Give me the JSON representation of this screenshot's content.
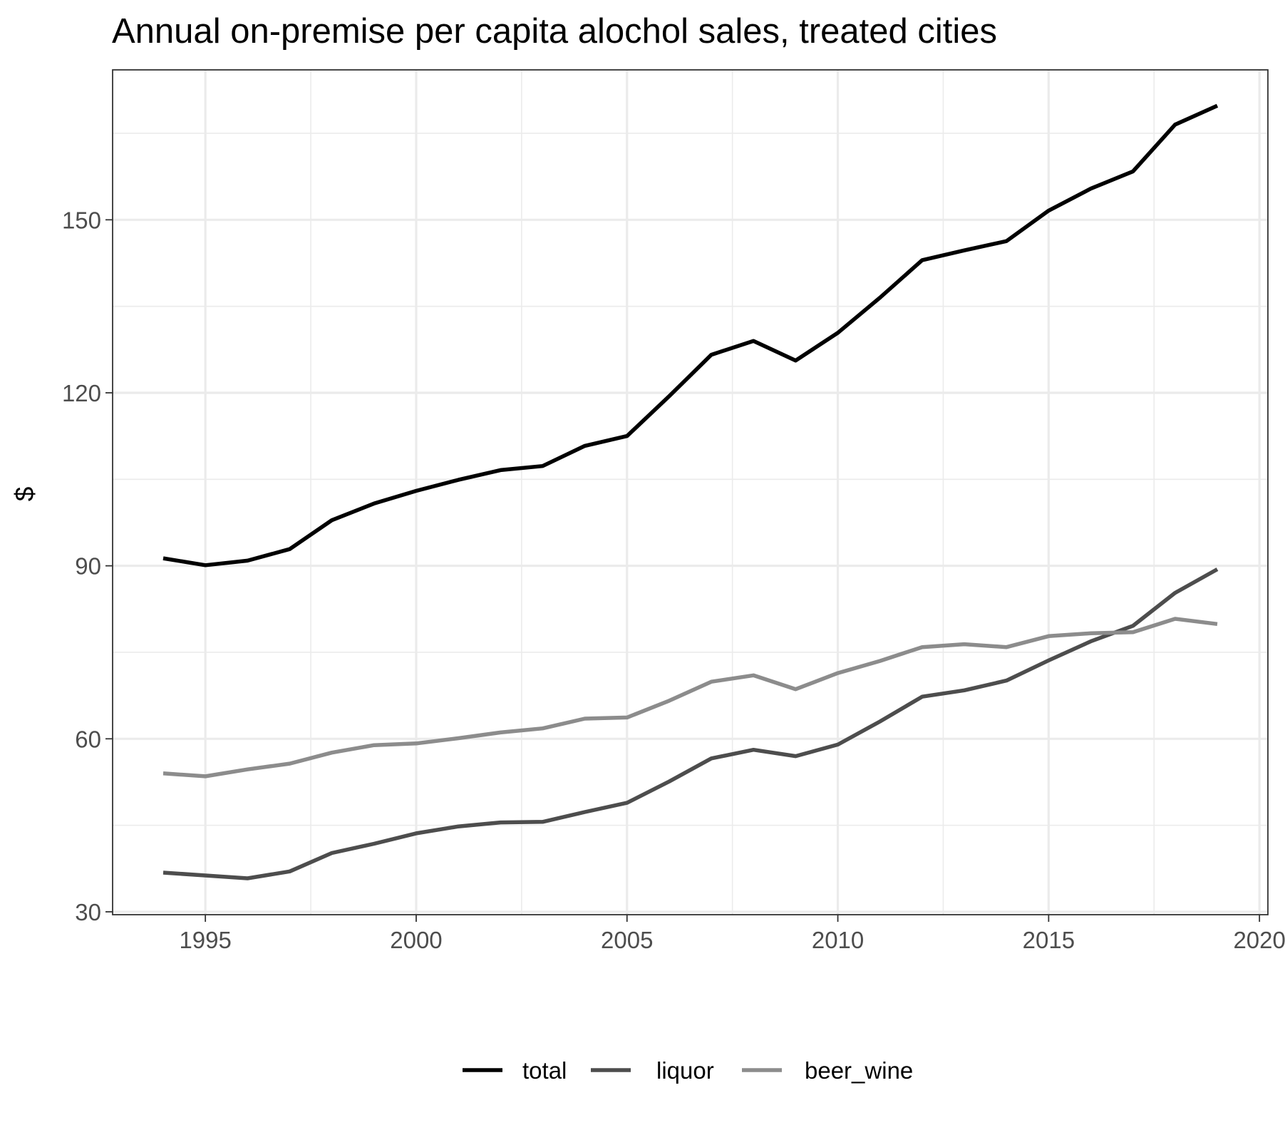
{
  "chart_data": {
    "type": "line",
    "title": "Annual on-premise per capita alochol sales, treated cities",
    "xlabel": "",
    "ylabel": "$",
    "xlim": [
      1992.8,
      2020.2
    ],
    "ylim": [
      29.5,
      176
    ],
    "x_ticks": [
      1995,
      2000,
      2005,
      2010,
      2015,
      2020
    ],
    "x_minor_ticks": [
      1997.5,
      2002.5,
      2007.5,
      2012.5,
      2017.5
    ],
    "y_ticks": [
      30,
      60,
      90,
      120,
      150
    ],
    "y_minor_ticks": [
      45,
      75,
      105,
      135,
      165
    ],
    "grid": true,
    "legend_position": "bottom",
    "x": [
      1994,
      1995,
      1996,
      1997,
      1998,
      1999,
      2000,
      2001,
      2002,
      2003,
      2004,
      2005,
      2006,
      2007,
      2008,
      2009,
      2010,
      2011,
      2012,
      2013,
      2014,
      2015,
      2016,
      2017,
      2018,
      2019
    ],
    "series": [
      {
        "name": "total",
        "color": "#000000",
        "values": [
          91.3,
          90.1,
          90.9,
          92.9,
          97.9,
          100.8,
          103.0,
          104.9,
          106.6,
          107.3,
          110.8,
          112.5,
          119.4,
          126.6,
          129.0,
          125.6,
          130.4,
          136.5,
          143.0,
          144.7,
          146.3,
          151.6,
          155.4,
          158.4,
          166.5,
          169.8
        ]
      },
      {
        "name": "liquor",
        "color": "#4d4d4d",
        "values": [
          36.8,
          36.3,
          35.8,
          37.0,
          40.2,
          41.8,
          43.6,
          44.8,
          45.5,
          45.6,
          47.3,
          48.9,
          52.6,
          56.6,
          58.1,
          57.0,
          59.0,
          63.0,
          67.3,
          68.4,
          70.1,
          73.6,
          76.9,
          79.6,
          85.3,
          89.4
        ]
      },
      {
        "name": "beer_wine",
        "color": "#8c8c8c",
        "values": [
          54.0,
          53.5,
          54.7,
          55.7,
          57.6,
          58.9,
          59.2,
          60.1,
          61.1,
          61.8,
          63.5,
          63.7,
          66.6,
          69.9,
          71.0,
          68.6,
          71.4,
          73.5,
          75.9,
          76.4,
          75.9,
          77.8,
          78.3,
          78.5,
          80.8,
          79.9
        ]
      }
    ]
  }
}
